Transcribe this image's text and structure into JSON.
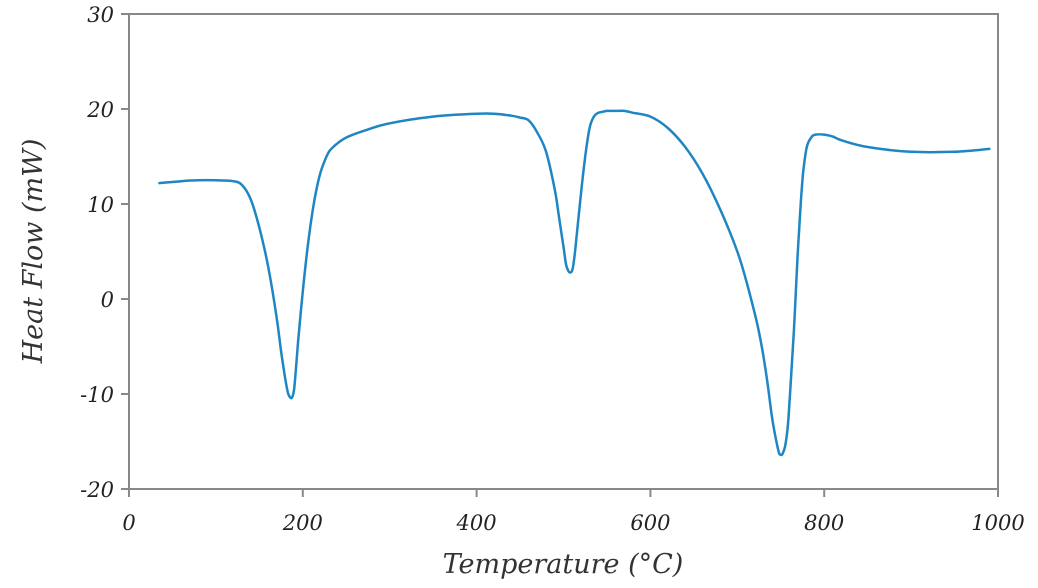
{
  "chart_data": {
    "type": "line",
    "title": "",
    "xlabel": "Temperature (°C)",
    "ylabel": "Heat Flow (mW)",
    "xlim": [
      0,
      1000
    ],
    "ylim": [
      -20,
      30
    ],
    "xticks": [
      0,
      200,
      400,
      600,
      800,
      1000
    ],
    "yticks": [
      -20,
      -10,
      0,
      10,
      20,
      30
    ],
    "xtick_labels": [
      "0",
      "200",
      "400",
      "600",
      "800",
      "1000"
    ],
    "ytick_labels": [
      "-20",
      "-10",
      "0",
      "10",
      "20",
      "30"
    ],
    "grid": false,
    "colors": {
      "line": "#1f86c4",
      "axes": "#888888"
    },
    "series": [
      {
        "x": [
          35,
          60,
          80,
          100,
          120,
          130,
          140,
          150,
          160,
          170,
          175,
          180,
          183,
          186,
          188,
          190,
          192,
          195,
          200,
          205,
          210,
          215,
          220,
          225,
          230,
          235,
          240,
          250,
          270,
          300,
          350,
          400,
          420,
          440,
          450,
          460,
          470,
          480,
          490,
          495,
          500,
          503,
          506,
          508,
          510,
          512,
          515,
          520,
          525,
          530,
          535,
          540,
          545,
          550,
          560,
          570,
          580,
          600,
          620,
          640,
          660,
          680,
          700,
          710,
          720,
          725,
          730,
          735,
          740,
          745,
          748,
          750,
          752,
          755,
          758,
          760,
          762,
          765,
          768,
          770,
          773,
          776,
          780,
          785,
          790,
          800,
          810,
          820,
          850,
          900,
          950,
          990
        ],
        "y": [
          12.2,
          12.4,
          12.5,
          12.5,
          12.4,
          12.0,
          10.5,
          7.5,
          3.5,
          -2.0,
          -5.5,
          -8.5,
          -9.9,
          -10.4,
          -10.3,
          -9.5,
          -7.5,
          -4.0,
          0.8,
          5.0,
          8.5,
          11.2,
          13.2,
          14.5,
          15.5,
          16.0,
          16.4,
          17.0,
          17.7,
          18.5,
          19.2,
          19.5,
          19.5,
          19.3,
          19.1,
          18.8,
          17.5,
          15.5,
          11.5,
          8.5,
          5.5,
          3.6,
          2.9,
          2.8,
          3.0,
          4.0,
          6.5,
          11.0,
          15.0,
          18.0,
          19.2,
          19.6,
          19.7,
          19.8,
          19.8,
          19.8,
          19.6,
          19.2,
          18.0,
          16.0,
          13.2,
          9.5,
          5.0,
          2.0,
          -1.5,
          -3.5,
          -6.0,
          -9.0,
          -12.5,
          -15.0,
          -16.2,
          -16.4,
          -16.3,
          -15.5,
          -13.5,
          -11.0,
          -8.0,
          -3.5,
          2.0,
          5.5,
          10.0,
          13.5,
          16.0,
          17.0,
          17.3,
          17.3,
          17.1,
          16.7,
          16.0,
          15.5,
          15.5,
          15.8
        ]
      }
    ]
  }
}
